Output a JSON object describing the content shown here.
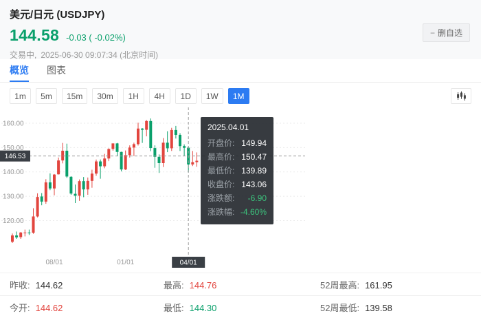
{
  "header": {
    "title": "美元/日元 (USDJPY)",
    "price": "144.58",
    "change": "-0.03 ( -0.02%)",
    "status_prefix": "交易中,",
    "timestamp": "2025-06-30 09:07:34 (北京时间)",
    "watchlist_button": {
      "label": "删自选"
    }
  },
  "tabs": [
    {
      "label": "概览",
      "active": true
    },
    {
      "label": "图表",
      "active": false
    }
  ],
  "timeframes": [
    {
      "label": "1m",
      "active": false
    },
    {
      "label": "5m",
      "active": false
    },
    {
      "label": "15m",
      "active": false
    },
    {
      "label": "30m",
      "active": false
    },
    {
      "label": "1H",
      "active": false
    },
    {
      "label": "4H",
      "active": false
    },
    {
      "label": "1D",
      "active": false
    },
    {
      "label": "1W",
      "active": false
    },
    {
      "label": "1M",
      "active": true
    }
  ],
  "chart": {
    "y_axis_labels": [
      "160.00",
      "150.00",
      "140.00",
      "130.00",
      "120.00"
    ],
    "x_axis_labels": [
      {
        "label": "08/01",
        "month_index": 10
      },
      {
        "label": "01/01",
        "month_index": 27
      }
    ],
    "crosshair": {
      "index": 42,
      "x_label": "04/01",
      "y_value": 146.53,
      "y_label": "146.53"
    },
    "tooltip": {
      "date": "2025.04.01",
      "rows": [
        {
          "label": "开盘价:",
          "value": "149.94",
          "tone": "normal"
        },
        {
          "label": "最高价:",
          "value": "150.47",
          "tone": "normal"
        },
        {
          "label": "最低价:",
          "value": "139.89",
          "tone": "normal"
        },
        {
          "label": "收盘价:",
          "value": "143.06",
          "tone": "normal"
        },
        {
          "label": "涨跌额:",
          "value": "-6.90",
          "tone": "down"
        },
        {
          "label": "涨跌幅:",
          "value": "-4.60%",
          "tone": "down"
        }
      ]
    }
  },
  "chart_data": {
    "type": "candlestick",
    "timeframe": "monthly",
    "start_month": "2021-10",
    "ylim": [
      106,
      166.5
    ],
    "gridlines": [
      160,
      150,
      140,
      130,
      120
    ],
    "up_color": "#e2453e",
    "down_color": "#0aa06b",
    "ohlc": [
      [
        111.3,
        114.7,
        110.8,
        113.9
      ],
      [
        113.9,
        115.5,
        112.5,
        113.1
      ],
      [
        113.2,
        115.3,
        112.5,
        115.1
      ],
      [
        115.1,
        116.3,
        113.5,
        115.1
      ],
      [
        115.1,
        116.3,
        114.1,
        115.0
      ],
      [
        115.0,
        125.1,
        114.6,
        121.7
      ],
      [
        121.7,
        131.2,
        121.3,
        129.7
      ],
      [
        129.9,
        131.3,
        126.3,
        127.8
      ],
      [
        127.8,
        137.0,
        126.9,
        135.7
      ],
      [
        135.7,
        139.4,
        132.5,
        133.2
      ],
      [
        133.2,
        139.1,
        130.4,
        138.9
      ],
      [
        139.0,
        145.9,
        138.9,
        144.7
      ],
      [
        144.7,
        151.9,
        143.5,
        148.7
      ],
      [
        148.7,
        151.6,
        137.5,
        138.1
      ],
      [
        138.0,
        138.2,
        130.6,
        131.1
      ],
      [
        131.0,
        134.8,
        127.2,
        130.2
      ],
      [
        130.2,
        136.9,
        128.1,
        136.2
      ],
      [
        136.2,
        137.9,
        129.6,
        132.8
      ],
      [
        132.8,
        137.7,
        130.6,
        136.3
      ],
      [
        136.3,
        140.9,
        133.5,
        139.3
      ],
      [
        139.3,
        145.1,
        138.4,
        144.3
      ],
      [
        144.3,
        145.1,
        137.2,
        142.3
      ],
      [
        142.3,
        147.4,
        141.5,
        145.5
      ],
      [
        145.5,
        149.7,
        144.4,
        149.4
      ],
      [
        149.4,
        151.7,
        148.7,
        151.7
      ],
      [
        151.7,
        151.9,
        146.7,
        148.2
      ],
      [
        148.2,
        148.3,
        140.2,
        141.0
      ],
      [
        141.0,
        148.8,
        140.8,
        146.9
      ],
      [
        146.9,
        150.9,
        145.9,
        150.0
      ],
      [
        150.0,
        152.0,
        146.5,
        151.4
      ],
      [
        151.4,
        160.2,
        150.8,
        157.8
      ],
      [
        157.8,
        158.0,
        151.9,
        157.3
      ],
      [
        157.3,
        161.3,
        154.6,
        160.9
      ],
      [
        160.9,
        161.95,
        148.5,
        149.8
      ],
      [
        149.8,
        150.9,
        141.7,
        146.2
      ],
      [
        146.2,
        147.2,
        139.58,
        143.6
      ],
      [
        143.6,
        153.9,
        142.0,
        152.0
      ],
      [
        152.0,
        156.7,
        148.1,
        149.7
      ],
      [
        149.7,
        158.1,
        148.6,
        157.2
      ],
      [
        157.2,
        158.9,
        153.7,
        155.2
      ],
      [
        155.2,
        155.9,
        148.6,
        150.6
      ],
      [
        150.6,
        151.3,
        146.5,
        149.9
      ],
      [
        149.94,
        150.47,
        139.89,
        143.06
      ],
      [
        143.06,
        148.6,
        142.4,
        144.0
      ],
      [
        144.0,
        148.0,
        142.1,
        144.58
      ]
    ]
  },
  "stats": {
    "rows": [
      [
        {
          "label": "昨收:",
          "value": "144.62",
          "tone": "neutral"
        },
        {
          "label": "最高:",
          "value": "144.76",
          "tone": "up"
        },
        {
          "label": "52周最高:",
          "value": "161.95",
          "tone": "neutral"
        }
      ],
      [
        {
          "label": "今开:",
          "value": "144.62",
          "tone": "up"
        },
        {
          "label": "最低:",
          "value": "144.30",
          "tone": "down"
        },
        {
          "label": "52周最低:",
          "value": "139.58",
          "tone": "neutral"
        }
      ]
    ]
  },
  "colors": {
    "up": "#e2453e",
    "down": "#0aa06b",
    "accent_blue": "#2c7bf2",
    "badge_dark": "#3a3f45"
  }
}
